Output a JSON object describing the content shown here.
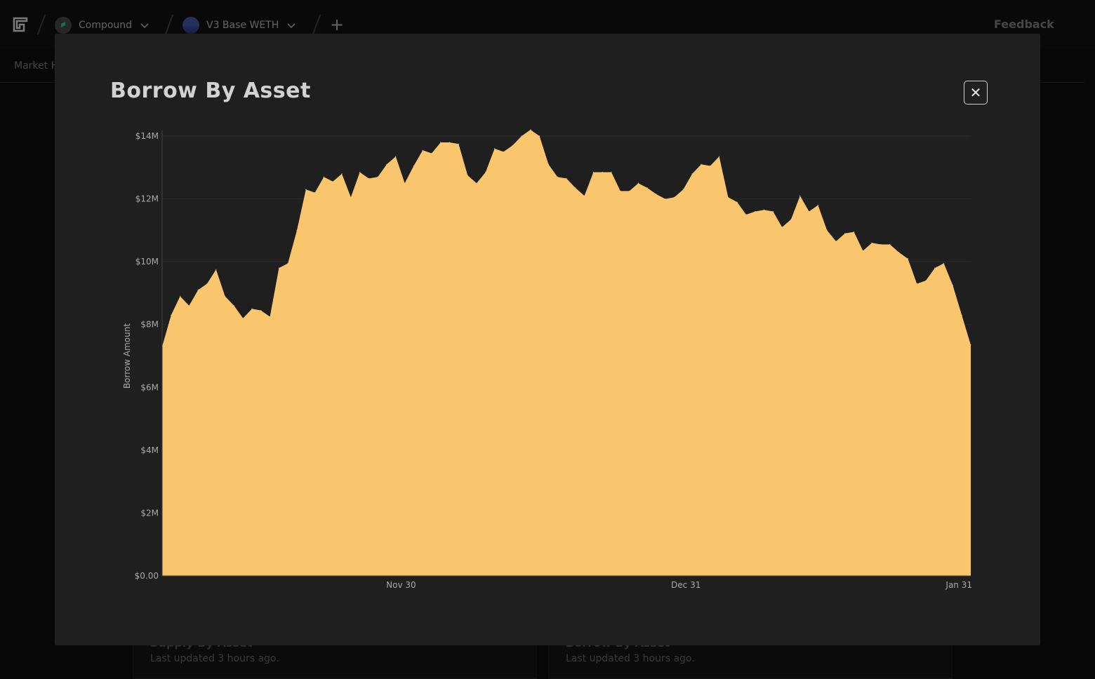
{
  "topbar": {
    "protocol": {
      "label": "Compound",
      "icon": "compound-logo-icon"
    },
    "market": {
      "label": "V3 Base WETH",
      "icon": "base-weth-icon"
    },
    "feedback_label": "Feedback"
  },
  "subnav": {
    "item": "Market H"
  },
  "background_cards": [
    {
      "title": "Supply By Asset",
      "updated": "Last updated 3 hours ago."
    },
    {
      "title": "Borrow By Asset",
      "updated": "Last updated 3 hours ago."
    }
  ],
  "modal": {
    "title": "Borrow By Asset",
    "close_label": "✕"
  },
  "colors": {
    "area": "#F9C66E",
    "modal_bg": "#1f1f20",
    "page_bg": "#0b0b0b"
  },
  "chart_data": {
    "type": "area",
    "title": "Borrow By Asset",
    "ylabel": "Borrow Amount",
    "ylim": [
      0,
      14000000
    ],
    "y_ticks": [
      "$0.00",
      "$2M",
      "$4M",
      "$6M",
      "$8M",
      "$10M",
      "$12M",
      "$14M"
    ],
    "x_ticks": [
      "Nov 30",
      "Dec 31",
      "Jan 31"
    ],
    "x_start": "2023-11-04",
    "x_end": "2024-01-31",
    "grid": true,
    "values": [
      7.3,
      8.3,
      8.9,
      8.6,
      9.1,
      9.3,
      9.75,
      8.9,
      8.6,
      8.2,
      8.5,
      8.45,
      8.25,
      9.8,
      9.95,
      11.0,
      12.3,
      12.2,
      12.7,
      12.55,
      12.8,
      12.05,
      12.85,
      12.65,
      12.7,
      13.1,
      13.35,
      12.5,
      13.05,
      13.55,
      13.45,
      13.8,
      13.8,
      13.75,
      12.75,
      12.5,
      12.85,
      13.6,
      13.5,
      13.7,
      14.0,
      14.2,
      14.0,
      13.1,
      12.7,
      12.65,
      12.35,
      12.1,
      12.85,
      12.85,
      12.85,
      12.25,
      12.25,
      12.5,
      12.35,
      12.15,
      12.0,
      12.05,
      12.3,
      12.8,
      13.1,
      13.05,
      13.35,
      12.05,
      11.9,
      11.5,
      11.6,
      11.65,
      11.6,
      11.1,
      11.35,
      12.1,
      11.6,
      11.8,
      11.0,
      10.65,
      10.9,
      10.95,
      10.35,
      10.6,
      10.55,
      10.55,
      10.3,
      10.1,
      9.3,
      9.4,
      9.8,
      9.95,
      9.25,
      8.3,
      7.35
    ]
  }
}
